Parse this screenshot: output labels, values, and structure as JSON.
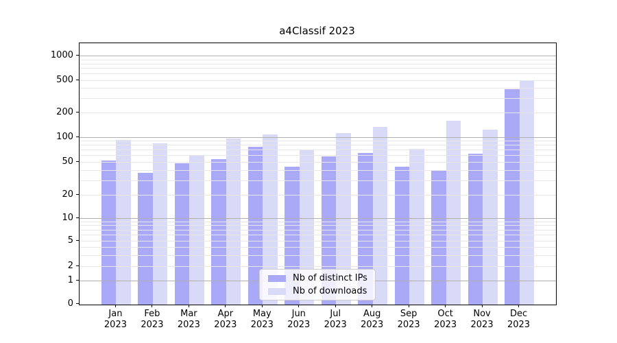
{
  "chart_data": {
    "type": "bar",
    "title": "a4Classif 2023",
    "categories": [
      "Jan",
      "Feb",
      "Mar",
      "Apr",
      "May",
      "Jun",
      "Jul",
      "Aug",
      "Sep",
      "Oct",
      "Nov",
      "Dec"
    ],
    "category_year": "2023",
    "series": [
      {
        "name": "Nb of distinct IPs",
        "color": "#a9a9f7",
        "values": [
          52,
          37,
          48,
          54,
          77,
          44,
          59,
          64,
          44,
          39,
          63,
          390
        ]
      },
      {
        "name": "Nb of downloads",
        "color": "#d9d9f8",
        "values": [
          93,
          84,
          61,
          96,
          108,
          71,
          112,
          134,
          72,
          160,
          124,
          490
        ]
      }
    ],
    "yscale": "symlog",
    "y_ticks": [
      0,
      1,
      2,
      5,
      10,
      20,
      50,
      100,
      200,
      500,
      1000
    ],
    "ylim": [
      0,
      1440
    ],
    "grid": "both, horizontal only, drawn above bars",
    "legend_position": "lower center"
  }
}
